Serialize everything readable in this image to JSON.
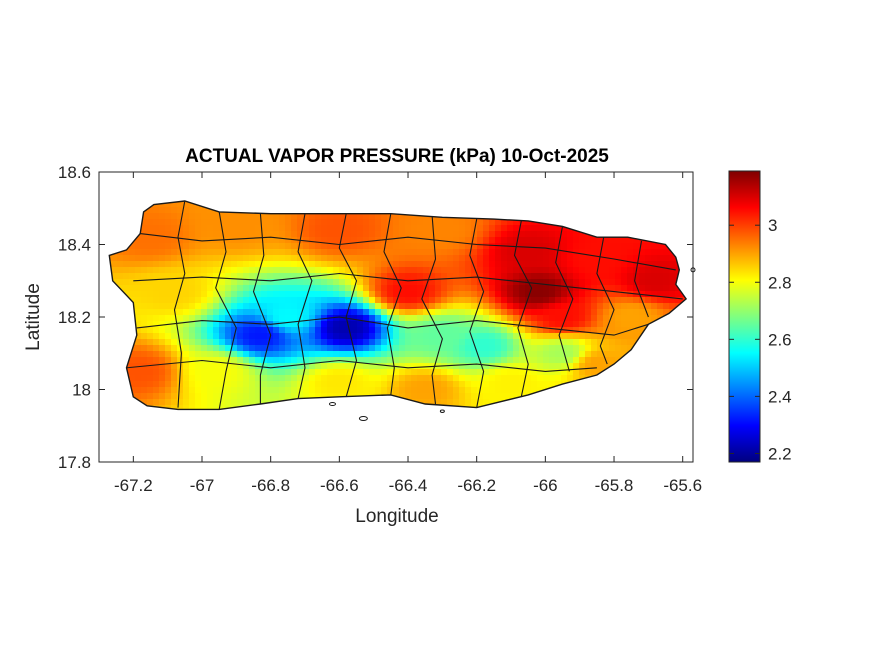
{
  "chart_data": {
    "type": "heatmap",
    "title": "ACTUAL VAPOR PRESSURE (kPa) 10-Oct-2025",
    "xlabel": "Longitude",
    "ylabel": "Latitude",
    "xlim": [
      -67.3,
      -65.57
    ],
    "ylim": [
      17.8,
      18.6
    ],
    "xticks": [
      -67.2,
      -67,
      -66.8,
      -66.6,
      -66.4,
      -66.2,
      -66,
      -65.8,
      -65.6
    ],
    "xtick_labels": [
      "-67.2",
      "-67",
      "-66.8",
      "-66.6",
      "-66.4",
      "-66.2",
      "-66",
      "-65.8",
      "-65.6"
    ],
    "yticks": [
      17.8,
      18,
      18.2,
      18.4,
      18.6
    ],
    "ytick_labels": [
      "17.8",
      "18",
      "18.2",
      "18.4",
      "18.6"
    ],
    "colorbar": {
      "colormap": "jet",
      "range": [
        2.17,
        3.19
      ],
      "ticks": [
        2.2,
        2.4,
        2.6,
        2.8,
        3
      ],
      "tick_labels": [
        "2.2",
        "2.4",
        "2.6",
        "2.8",
        "3"
      ]
    },
    "grid": false,
    "units": "kPa",
    "field_samples": [
      {
        "lon": -67.15,
        "lat": 18.42,
        "value": 2.95
      },
      {
        "lon": -66.9,
        "lat": 18.45,
        "value": 2.92
      },
      {
        "lon": -66.6,
        "lat": 18.44,
        "value": 2.98
      },
      {
        "lon": -66.3,
        "lat": 18.44,
        "value": 2.93
      },
      {
        "lon": -66.05,
        "lat": 18.38,
        "value": 3.1
      },
      {
        "lon": -65.85,
        "lat": 18.36,
        "value": 3.05
      },
      {
        "lon": -65.68,
        "lat": 18.3,
        "value": 3.1
      },
      {
        "lon": -67.08,
        "lat": 18.27,
        "value": 2.85
      },
      {
        "lon": -66.75,
        "lat": 18.2,
        "value": 2.55
      },
      {
        "lon": -66.83,
        "lat": 18.15,
        "value": 2.32
      },
      {
        "lon": -66.58,
        "lat": 18.17,
        "value": 2.22
      },
      {
        "lon": -66.4,
        "lat": 18.27,
        "value": 3.05
      },
      {
        "lon": -66.02,
        "lat": 18.27,
        "value": 3.18
      },
      {
        "lon": -65.95,
        "lat": 18.2,
        "value": 3.05
      },
      {
        "lon": -66.3,
        "lat": 18.15,
        "value": 2.65
      },
      {
        "lon": -66.18,
        "lat": 18.12,
        "value": 2.6
      },
      {
        "lon": -65.95,
        "lat": 18.1,
        "value": 2.72
      },
      {
        "lon": -67.18,
        "lat": 18.05,
        "value": 2.98
      },
      {
        "lon": -66.95,
        "lat": 18.05,
        "value": 2.8
      },
      {
        "lon": -66.6,
        "lat": 18.02,
        "value": 2.83
      },
      {
        "lon": -66.35,
        "lat": 18.0,
        "value": 2.9
      },
      {
        "lon": -66.1,
        "lat": 18.02,
        "value": 2.82
      },
      {
        "lon": -65.85,
        "lat": 18.07,
        "value": 2.9
      },
      {
        "lon": -65.75,
        "lat": 18.2,
        "value": 2.9
      }
    ]
  }
}
